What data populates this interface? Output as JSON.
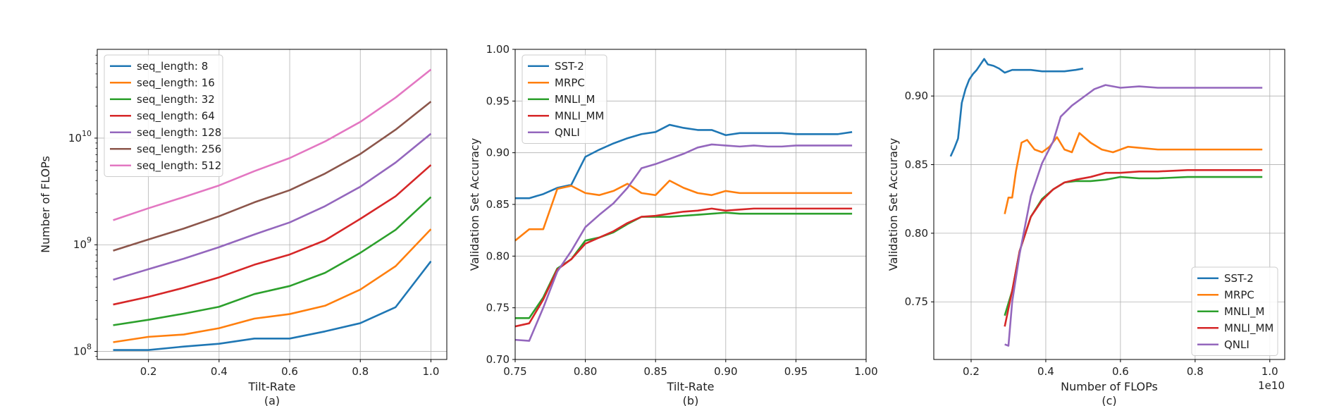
{
  "colors": {
    "blue": "#1f77b4",
    "orange": "#ff7f0e",
    "green": "#2ca02c",
    "red": "#d62728",
    "purple": "#9467bd",
    "brown": "#8c564b",
    "pink": "#e377c2"
  },
  "chart_data": [
    {
      "type": "line",
      "caption": "(a)",
      "xlabel": "Tilt-Rate",
      "ylabel": "Number of FLOPs",
      "xlim": [
        0.055,
        1.045
      ],
      "ylim": [
        84000000.0,
        68000000000.0
      ],
      "yscale": "log",
      "grid": true,
      "legend": "top-left",
      "xticks": [
        {
          "v": 0.2,
          "label": "0.2"
        },
        {
          "v": 0.4,
          "label": "0.4"
        },
        {
          "v": 0.6,
          "label": "0.6"
        },
        {
          "v": 0.8,
          "label": "0.8"
        },
        {
          "v": 1.0,
          "label": "1.0"
        }
      ],
      "yticks": [
        {
          "v": 100000000.0,
          "base": "10",
          "exp": "8"
        },
        {
          "v": 1000000000.0,
          "base": "10",
          "exp": "9"
        },
        {
          "v": 10000000000.0,
          "base": "10",
          "exp": "10"
        }
      ],
      "x": [
        0.1,
        0.2,
        0.3,
        0.4,
        0.5,
        0.6,
        0.7,
        0.8,
        0.9,
        1.0
      ],
      "series": [
        {
          "name": "seq_length: 8",
          "color": "blue",
          "y": [
            103000000.0,
            103000000.0,
            111000000.0,
            118000000.0,
            132000000.0,
            132000000.0,
            154000000.0,
            184000000.0,
            260000000.0,
            700000000.0
          ]
        },
        {
          "name": "seq_length: 16",
          "color": "orange",
          "y": [
            122000000.0,
            137000000.0,
            144000000.0,
            165000000.0,
            203000000.0,
            224000000.0,
            268000000.0,
            380000000.0,
            630000000.0,
            1400000000.0
          ]
        },
        {
          "name": "seq_length: 32",
          "color": "green",
          "y": [
            176000000.0,
            198000000.0,
            226000000.0,
            262000000.0,
            345000000.0,
            410000000.0,
            545000000.0,
            840000000.0,
            1380000000.0,
            2800000000.0
          ]
        },
        {
          "name": "seq_length: 64",
          "color": "red",
          "y": [
            275000000.0,
            325000000.0,
            395000000.0,
            495000000.0,
            650000000.0,
            810000000.0,
            1100000000.0,
            1750000000.0,
            2850000000.0,
            5600000000.0
          ]
        },
        {
          "name": "seq_length: 128",
          "color": "purple",
          "y": [
            470000000.0,
            590000000.0,
            740000000.0,
            950000000.0,
            1250000000.0,
            1620000000.0,
            2300000000.0,
            3500000000.0,
            5900000000.0,
            11000000000.0
          ]
        },
        {
          "name": "seq_length: 256",
          "color": "brown",
          "y": [
            880000000.0,
            1120000000.0,
            1420000000.0,
            1850000000.0,
            2500000000.0,
            3250000000.0,
            4650000000.0,
            7100000000.0,
            12000000000.0,
            22000000000.0
          ]
        },
        {
          "name": "seq_length: 512",
          "color": "pink",
          "y": [
            1700000000.0,
            2200000000.0,
            2800000000.0,
            3600000000.0,
            4900000000.0,
            6500000000.0,
            9300000000.0,
            14200000000.0,
            24000000000.0,
            44000000000.0
          ]
        }
      ]
    },
    {
      "type": "line",
      "caption": "(b)",
      "xlabel": "Tilt-Rate",
      "ylabel": "Validation Set Accuracy",
      "xlim": [
        0.75,
        1.0
      ],
      "ylim": [
        0.7,
        1.0
      ],
      "grid": true,
      "legend": "top-left",
      "xticks": [
        {
          "v": 0.75,
          "label": "0.75"
        },
        {
          "v": 0.8,
          "label": "0.80"
        },
        {
          "v": 0.85,
          "label": "0.85"
        },
        {
          "v": 0.9,
          "label": "0.90"
        },
        {
          "v": 0.95,
          "label": "0.95"
        },
        {
          "v": 1.0,
          "label": "1.00"
        }
      ],
      "yticks": [
        {
          "v": 0.7,
          "label": "0.70"
        },
        {
          "v": 0.75,
          "label": "0.75"
        },
        {
          "v": 0.8,
          "label": "0.80"
        },
        {
          "v": 0.85,
          "label": "0.85"
        },
        {
          "v": 0.9,
          "label": "0.90"
        },
        {
          "v": 0.95,
          "label": "0.95"
        },
        {
          "v": 1.0,
          "label": "1.00"
        }
      ],
      "x": [
        0.75,
        0.76,
        0.77,
        0.78,
        0.79,
        0.8,
        0.81,
        0.82,
        0.83,
        0.84,
        0.85,
        0.86,
        0.87,
        0.88,
        0.89,
        0.9,
        0.91,
        0.92,
        0.93,
        0.94,
        0.95,
        0.96,
        0.97,
        0.98,
        0.99
      ],
      "series": [
        {
          "name": "SST-2",
          "color": "blue",
          "y": [
            0.856,
            0.856,
            0.86,
            0.866,
            0.869,
            0.896,
            0.903,
            0.909,
            0.914,
            0.918,
            0.92,
            0.927,
            0.924,
            0.922,
            0.922,
            0.917,
            0.919,
            0.919,
            0.919,
            0.919,
            0.918,
            0.918,
            0.918,
            0.918,
            0.92
          ]
        },
        {
          "name": "MRPC",
          "color": "orange",
          "y": [
            0.815,
            0.826,
            0.826,
            0.865,
            0.868,
            0.861,
            0.859,
            0.863,
            0.87,
            0.861,
            0.859,
            0.873,
            0.866,
            0.861,
            0.859,
            0.863,
            0.861,
            0.861,
            0.861,
            0.861,
            0.861,
            0.861,
            0.861,
            0.861,
            0.861
          ]
        },
        {
          "name": "MNLI_M",
          "color": "green",
          "y": [
            0.74,
            0.74,
            0.76,
            0.788,
            0.797,
            0.815,
            0.818,
            0.823,
            0.831,
            0.838,
            0.838,
            0.838,
            0.839,
            0.84,
            0.841,
            0.842,
            0.841,
            0.841,
            0.841,
            0.841,
            0.841,
            0.841,
            0.841,
            0.841,
            0.841
          ]
        },
        {
          "name": "MNLI_MM",
          "color": "red",
          "y": [
            0.732,
            0.735,
            0.758,
            0.787,
            0.797,
            0.812,
            0.818,
            0.824,
            0.832,
            0.838,
            0.839,
            0.841,
            0.843,
            0.844,
            0.846,
            0.844,
            0.845,
            0.846,
            0.846,
            0.846,
            0.846,
            0.846,
            0.846,
            0.846,
            0.846
          ]
        },
        {
          "name": "QNLI",
          "color": "purple",
          "y": [
            0.719,
            0.718,
            0.75,
            0.785,
            0.805,
            0.828,
            0.84,
            0.851,
            0.866,
            0.885,
            0.889,
            0.894,
            0.899,
            0.905,
            0.908,
            0.907,
            0.906,
            0.907,
            0.906,
            0.906,
            0.907,
            0.907,
            0.907,
            0.907,
            0.907
          ]
        }
      ]
    },
    {
      "type": "line",
      "caption": "(c)",
      "xlabel": "Number of FLOPs",
      "ylabel": "Validation Set Accuracy",
      "x_offset_label": "1e10",
      "xlim": [
        0.1,
        1.04
      ],
      "ylim": [
        0.708,
        0.934
      ],
      "grid": true,
      "legend": "bottom-right",
      "xticks": [
        {
          "v": 0.2,
          "label": "0.2"
        },
        {
          "v": 0.4,
          "label": "0.4"
        },
        {
          "v": 0.6,
          "label": "0.6"
        },
        {
          "v": 0.8,
          "label": "0.8"
        },
        {
          "v": 1.0,
          "label": "1.0"
        }
      ],
      "yticks": [
        {
          "v": 0.75,
          "label": "0.75"
        },
        {
          "v": 0.8,
          "label": "0.80"
        },
        {
          "v": 0.85,
          "label": "0.85"
        },
        {
          "v": 0.9,
          "label": "0.90"
        }
      ],
      "series": [
        {
          "name": "SST-2",
          "color": "blue",
          "x": [
            0.145,
            0.155,
            0.165,
            0.175,
            0.185,
            0.195,
            0.205,
            0.215,
            0.225,
            0.235,
            0.245,
            0.26,
            0.275,
            0.29,
            0.31,
            0.33,
            0.36,
            0.39,
            0.42,
            0.45,
            0.48,
            0.5
          ],
          "y": [
            0.856,
            0.862,
            0.869,
            0.895,
            0.905,
            0.912,
            0.916,
            0.919,
            0.923,
            0.927,
            0.923,
            0.922,
            0.92,
            0.917,
            0.919,
            0.919,
            0.919,
            0.918,
            0.918,
            0.918,
            0.919,
            0.92
          ]
        },
        {
          "name": "MRPC",
          "color": "orange",
          "x": [
            0.29,
            0.3,
            0.31,
            0.32,
            0.335,
            0.35,
            0.37,
            0.39,
            0.41,
            0.43,
            0.45,
            0.47,
            0.49,
            0.52,
            0.55,
            0.58,
            0.62,
            0.7,
            0.8,
            0.9,
            0.98
          ],
          "y": [
            0.814,
            0.826,
            0.826,
            0.845,
            0.866,
            0.868,
            0.861,
            0.859,
            0.863,
            0.87,
            0.861,
            0.859,
            0.873,
            0.866,
            0.861,
            0.859,
            0.863,
            0.861,
            0.861,
            0.861,
            0.861
          ]
        },
        {
          "name": "MNLI_M",
          "color": "green",
          "x": [
            0.29,
            0.31,
            0.33,
            0.36,
            0.39,
            0.42,
            0.45,
            0.48,
            0.52,
            0.56,
            0.6,
            0.65,
            0.7,
            0.78,
            0.86,
            0.94,
            0.98
          ],
          "y": [
            0.74,
            0.758,
            0.787,
            0.812,
            0.825,
            0.832,
            0.837,
            0.838,
            0.838,
            0.839,
            0.841,
            0.84,
            0.84,
            0.841,
            0.841,
            0.841,
            0.841
          ]
        },
        {
          "name": "MNLI_MM",
          "color": "red",
          "x": [
            0.29,
            0.31,
            0.33,
            0.36,
            0.39,
            0.42,
            0.45,
            0.48,
            0.52,
            0.56,
            0.6,
            0.65,
            0.7,
            0.78,
            0.86,
            0.94,
            0.98
          ],
          "y": [
            0.732,
            0.758,
            0.787,
            0.812,
            0.824,
            0.832,
            0.837,
            0.839,
            0.841,
            0.844,
            0.844,
            0.845,
            0.845,
            0.846,
            0.846,
            0.846,
            0.846
          ]
        },
        {
          "name": "QNLI",
          "color": "purple",
          "x": [
            0.29,
            0.3,
            0.31,
            0.33,
            0.36,
            0.39,
            0.42,
            0.44,
            0.47,
            0.5,
            0.53,
            0.56,
            0.6,
            0.65,
            0.7,
            0.78,
            0.86,
            0.94,
            0.98
          ],
          "y": [
            0.719,
            0.718,
            0.75,
            0.785,
            0.827,
            0.851,
            0.867,
            0.885,
            0.893,
            0.899,
            0.905,
            0.908,
            0.906,
            0.907,
            0.906,
            0.906,
            0.906,
            0.906,
            0.906
          ]
        }
      ]
    }
  ]
}
